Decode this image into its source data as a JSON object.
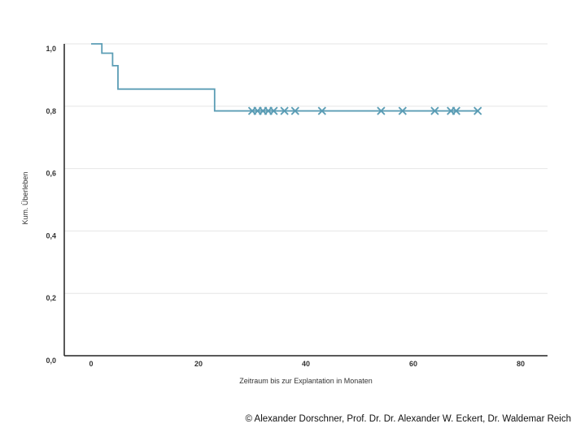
{
  "chart_data": {
    "type": "line",
    "chart_style": "step",
    "xlabel": "Zeitraum bis zur Explantation in Monaten",
    "ylabel": "Kum. Überleben",
    "xlim": [
      -5,
      85
    ],
    "ylim": [
      0,
      1.0
    ],
    "x_ticks": [
      0,
      20,
      40,
      60,
      80
    ],
    "x_tick_labels": [
      "0",
      "20",
      "40",
      "60",
      "80"
    ],
    "y_ticks": [
      0,
      0.2,
      0.4,
      0.6,
      0.8,
      1.0
    ],
    "y_tick_labels": [
      "0,0",
      "0,2",
      "0,4",
      "0,6",
      "0,8",
      "1,0"
    ],
    "grid": "horizontal",
    "series": [
      {
        "color": "#5b9db5",
        "x": [
          0,
          2,
          4,
          5,
          23,
          72
        ],
        "y": [
          1.0,
          0.97,
          0.93,
          0.855,
          0.785,
          0.785
        ],
        "censored": [
          {
            "x": 30,
            "y": 0.785
          },
          {
            "x": 31,
            "y": 0.785
          },
          {
            "x": 32,
            "y": 0.785
          },
          {
            "x": 33,
            "y": 0.785
          },
          {
            "x": 34,
            "y": 0.785
          },
          {
            "x": 36,
            "y": 0.785
          },
          {
            "x": 38,
            "y": 0.785
          },
          {
            "x": 43,
            "y": 0.785
          },
          {
            "x": 54,
            "y": 0.785
          },
          {
            "x": 58,
            "y": 0.785
          },
          {
            "x": 64,
            "y": 0.785
          },
          {
            "x": 67,
            "y": 0.785
          },
          {
            "x": 68,
            "y": 0.785
          },
          {
            "x": 72,
            "y": 0.785
          }
        ]
      }
    ]
  },
  "footer": {
    "copyright": "© Alexander Dorschner, Prof. Dr. Dr. Alexander W. Eckert, Dr. Waldemar Reich"
  }
}
